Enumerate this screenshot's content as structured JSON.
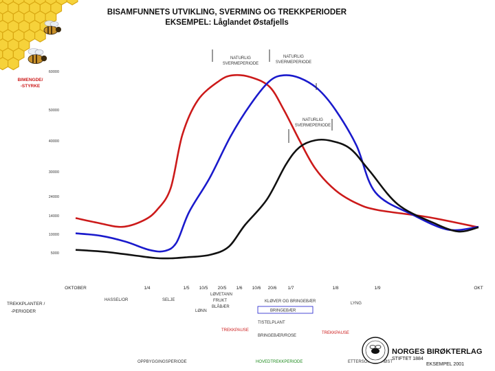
{
  "chart_data": {
    "type": "line",
    "title": "BISAMFUNNETS UTVIKLING, SVERMING OG TREKKPERIODER",
    "subtitle": "EKSEMPEL: Låglandet Østafjells",
    "ylabel_lines": [
      "BIMENGDE/",
      "-STYRKE"
    ],
    "y_ticks": [
      {
        "label": "60000",
        "value": 60000
      },
      {
        "label": "50000",
        "value": 50000
      },
      {
        "label": "40000",
        "value": 40000
      },
      {
        "label": "30000",
        "value": 30000
      },
      {
        "label": "24000",
        "value": 24000
      },
      {
        "label": "14000",
        "value": 14000
      },
      {
        "label": "10000",
        "value": 10000
      },
      {
        "label": "5000",
        "value": 5000
      }
    ],
    "x_ticks": [
      {
        "label": "OKTOBER",
        "x": 0
      },
      {
        "label": "1/4",
        "x": 1
      },
      {
        "label": "1/5",
        "x": 2
      },
      {
        "label": "10/5",
        "x": 2.3
      },
      {
        "label": "20/5",
        "x": 2.6
      },
      {
        "label": "1/6",
        "x": 3
      },
      {
        "label": "10/6",
        "x": 3.3
      },
      {
        "label": "20/6",
        "x": 3.6
      },
      {
        "label": "1/7",
        "x": 4
      },
      {
        "label": "1/8",
        "x": 5
      },
      {
        "label": "1/9",
        "x": 6
      },
      {
        "label": "OKT",
        "x": 7
      }
    ],
    "xlim": [
      0,
      7
    ],
    "series": [
      {
        "name": "red",
        "color": "#cc1a1a",
        "points": [
          [
            0,
            13500
          ],
          [
            0.3,
            12500
          ],
          [
            0.65,
            11600
          ],
          [
            0.95,
            13000
          ],
          [
            1.25,
            17000
          ],
          [
            1.6,
            26000
          ],
          [
            1.9,
            42000
          ],
          [
            2.2,
            52500
          ],
          [
            2.55,
            57500
          ],
          [
            2.85,
            59000
          ],
          [
            3.2,
            58500
          ],
          [
            3.55,
            56000
          ],
          [
            3.85,
            50000
          ],
          [
            4.2,
            40000
          ],
          [
            4.55,
            31000
          ],
          [
            5,
            25500
          ],
          [
            5.5,
            20500
          ],
          [
            6,
            17000
          ],
          [
            6.5,
            13700
          ],
          [
            7,
            11500
          ]
        ]
      },
      {
        "name": "blue",
        "color": "#1a1acc",
        "points": [
          [
            0,
            10200
          ],
          [
            0.35,
            9600
          ],
          [
            0.7,
            8000
          ],
          [
            1.05,
            5800
          ],
          [
            1.45,
            5500
          ],
          [
            1.75,
            7800
          ],
          [
            2.05,
            16000
          ],
          [
            2.4,
            28500
          ],
          [
            2.8,
            41500
          ],
          [
            3.2,
            51500
          ],
          [
            3.55,
            57500
          ],
          [
            3.85,
            59000
          ],
          [
            4.2,
            58300
          ],
          [
            4.6,
            55500
          ],
          [
            5,
            50000
          ],
          [
            5.5,
            38500
          ],
          [
            5.95,
            25000
          ],
          [
            6.35,
            14500
          ],
          [
            6.7,
            11000
          ],
          [
            7,
            11600
          ]
        ]
      },
      {
        "name": "black",
        "color": "#111111",
        "points": [
          [
            0,
            5800
          ],
          [
            0.4,
            5300
          ],
          [
            0.8,
            4300
          ],
          [
            1.2,
            3500
          ],
          [
            1.6,
            3400
          ],
          [
            2,
            3700
          ],
          [
            2.4,
            4400
          ],
          [
            2.75,
            6600
          ],
          [
            3.1,
            12000
          ],
          [
            3.5,
            22500
          ],
          [
            3.9,
            32500
          ],
          [
            4.2,
            38000
          ],
          [
            4.55,
            40200
          ],
          [
            4.9,
            40000
          ],
          [
            5.35,
            37500
          ],
          [
            5.8,
            30500
          ],
          [
            6.2,
            20000
          ],
          [
            6.55,
            12500
          ],
          [
            6.8,
            10600
          ],
          [
            7,
            11500
          ]
        ]
      }
    ],
    "annotations": [
      {
        "text": [
          "NATURLIG",
          "SVERMEPERIODE"
        ],
        "series": "red"
      },
      {
        "text": [
          "NATURLIG",
          "SVERMEPERIODE"
        ],
        "series": "blue"
      },
      {
        "text": [
          "NATURLIG",
          "SVERMEPERIODE"
        ],
        "series": "black"
      }
    ],
    "bottom_section": {
      "heading_lines": [
        "TREKKPLANTER /",
        "-PERIODER"
      ],
      "plants": [
        "HASSEL/OR",
        "SELJE",
        "LØVETANN",
        "FRUKT",
        "BLÅBÆR",
        "KLØVER OG BRINGEBÆR",
        "BRINGEBÆR",
        "LYNG",
        "LØNN",
        "TISTELPLANT",
        "BRINGEBÆR/ROSE"
      ],
      "red_labels": [
        "TREKKPAUSE",
        "TREKKPAUSE"
      ],
      "black_labels": [
        "OPPBYGGINGSPERIODE"
      ],
      "green_labels": [
        "HOVEDTREKKPERIODE"
      ],
      "other_labels": [
        "ETTERSOMMER/HØST"
      ]
    }
  },
  "logo": {
    "name": "NORGES BIRØKTERLAG",
    "line2": "STIFTET 1884",
    "line3": "EKSEMPEL 2001",
    "emblem": "bee-emblem-icon"
  },
  "decor": {
    "honeycomb": "honeycomb-icon",
    "bees": [
      "bee-icon",
      "bee-icon"
    ]
  }
}
